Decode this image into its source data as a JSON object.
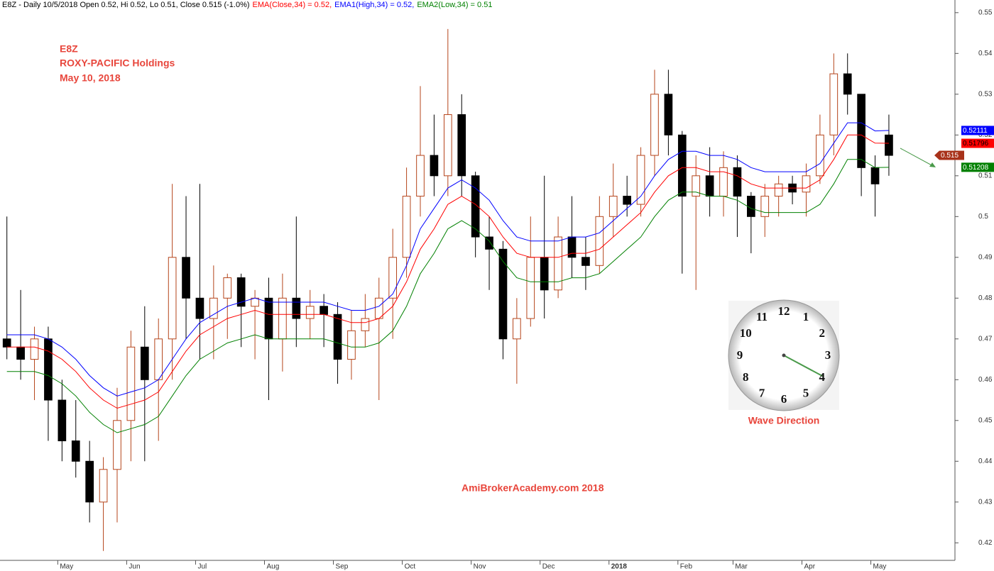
{
  "chart_data": {
    "type": "candlestick",
    "title": "E8Z - Daily 10/5/2018 Open 0.52, Hi 0.52, Lo 0.51, Close 0.515 (-1.0%)",
    "annotations": [
      "E8Z",
      "ROXY-PACIFIC Holdings",
      "May 10, 2018"
    ],
    "watermark": "AmiBrokerAcademy.com  2018",
    "clock_caption": "Wave Direction",
    "clock_numbers": [
      12,
      1,
      2,
      3,
      4,
      5,
      6,
      7,
      8,
      9,
      10,
      11
    ],
    "categories": [
      null,
      null,
      null,
      null,
      "May",
      null,
      null,
      null,
      null,
      "Jun",
      null,
      null,
      null,
      null,
      "Jul",
      null,
      null,
      null,
      null,
      "Aug",
      null,
      null,
      null,
      null,
      "Sep",
      null,
      null,
      null,
      null,
      "Oct",
      null,
      null,
      null,
      null,
      "Nov",
      null,
      null,
      null,
      null,
      "Dec",
      null,
      null,
      null,
      null,
      "2018",
      null,
      null,
      null,
      null,
      "Feb",
      null,
      null,
      null,
      "Mar",
      null,
      null,
      null,
      null,
      "Apr",
      null,
      null,
      null,
      null,
      "May",
      null
    ],
    "open": [
      0.47,
      0.468,
      0.465,
      0.47,
      0.455,
      0.445,
      0.44,
      0.43,
      0.438,
      0.45,
      0.468,
      0.46,
      0.47,
      0.49,
      0.48,
      0.475,
      0.48,
      0.485,
      0.478,
      0.48,
      0.47,
      0.48,
      0.475,
      0.478,
      0.476,
      0.465,
      0.472,
      0.475,
      0.48,
      0.49,
      0.505,
      0.515,
      0.51,
      0.525,
      0.51,
      0.495,
      0.492,
      0.47,
      0.475,
      0.49,
      0.482,
      0.495,
      0.49,
      0.488,
      0.5,
      0.505,
      0.503,
      0.515,
      0.53,
      0.52,
      0.505,
      0.51,
      0.505,
      0.512,
      0.505,
      0.5,
      0.505,
      0.508,
      0.506,
      0.51,
      0.52,
      0.535,
      0.53,
      0.512,
      0.52
    ],
    "high": [
      0.5,
      0.482,
      0.473,
      0.473,
      0.46,
      0.455,
      0.445,
      0.441,
      0.458,
      0.472,
      0.478,
      0.475,
      0.508,
      0.505,
      0.508,
      0.488,
      0.486,
      0.486,
      0.482,
      0.485,
      0.486,
      0.5,
      0.482,
      0.481,
      0.479,
      0.477,
      0.481,
      0.485,
      0.497,
      0.512,
      0.532,
      0.525,
      0.546,
      0.53,
      0.511,
      0.5,
      0.494,
      0.48,
      0.5,
      0.51,
      0.5,
      0.505,
      0.495,
      0.505,
      0.513,
      0.51,
      0.517,
      0.536,
      0.536,
      0.521,
      0.515,
      0.517,
      0.516,
      0.515,
      0.506,
      0.508,
      0.51,
      0.51,
      0.513,
      0.525,
      0.54,
      0.54,
      0.53,
      0.515,
      0.525
    ],
    "low": [
      0.465,
      0.46,
      0.455,
      0.445,
      0.44,
      0.436,
      0.425,
      0.418,
      0.425,
      0.44,
      0.44,
      0.445,
      0.46,
      0.47,
      0.465,
      0.465,
      0.47,
      0.468,
      0.465,
      0.455,
      0.462,
      0.468,
      0.47,
      0.468,
      0.459,
      0.46,
      0.468,
      0.455,
      0.47,
      0.485,
      0.5,
      0.505,
      0.505,
      0.505,
      0.49,
      0.482,
      0.465,
      0.459,
      0.473,
      0.475,
      0.48,
      0.485,
      0.482,
      0.486,
      0.495,
      0.5,
      0.5,
      0.51,
      0.515,
      0.486,
      0.482,
      0.5,
      0.5,
      0.495,
      0.491,
      0.495,
      0.5,
      0.503,
      0.5,
      0.508,
      0.515,
      0.525,
      0.505,
      0.5,
      0.51
    ],
    "close": [
      0.468,
      0.465,
      0.47,
      0.455,
      0.445,
      0.44,
      0.43,
      0.438,
      0.45,
      0.468,
      0.46,
      0.47,
      0.49,
      0.48,
      0.475,
      0.48,
      0.485,
      0.478,
      0.48,
      0.47,
      0.48,
      0.475,
      0.478,
      0.476,
      0.465,
      0.472,
      0.475,
      0.48,
      0.49,
      0.505,
      0.515,
      0.51,
      0.525,
      0.51,
      0.495,
      0.492,
      0.47,
      0.475,
      0.49,
      0.482,
      0.495,
      0.49,
      0.488,
      0.5,
      0.505,
      0.503,
      0.515,
      0.53,
      0.52,
      0.505,
      0.51,
      0.505,
      0.512,
      0.505,
      0.5,
      0.505,
      0.508,
      0.506,
      0.51,
      0.52,
      0.535,
      0.53,
      0.512,
      0.508,
      0.515
    ],
    "up_color": "#b5451b",
    "down_color": "#000000",
    "series": [
      {
        "name": "EMA(Close,34) = 0.52,",
        "color": "#ff0000",
        "label_text_color": "#000000",
        "values": [
          0.468,
          0.468,
          0.468,
          0.467,
          0.465,
          0.462,
          0.458,
          0.455,
          0.453,
          0.454,
          0.455,
          0.457,
          0.462,
          0.467,
          0.471,
          0.473,
          0.475,
          0.476,
          0.477,
          0.476,
          0.476,
          0.476,
          0.476,
          0.476,
          0.475,
          0.474,
          0.474,
          0.475,
          0.478,
          0.484,
          0.492,
          0.497,
          0.503,
          0.505,
          0.503,
          0.5,
          0.495,
          0.491,
          0.49,
          0.49,
          0.49,
          0.491,
          0.491,
          0.492,
          0.495,
          0.498,
          0.501,
          0.506,
          0.51,
          0.512,
          0.512,
          0.511,
          0.511,
          0.51,
          0.508,
          0.507,
          0.507,
          0.507,
          0.507,
          0.509,
          0.514,
          0.52,
          0.52,
          0.518,
          0.51796
        ]
      },
      {
        "name": "EMA1(High,34) = 0.52,",
        "color": "#0000ff",
        "label_text_color": "#ffffff",
        "values": [
          0.471,
          0.471,
          0.471,
          0.47,
          0.468,
          0.465,
          0.461,
          0.458,
          0.456,
          0.457,
          0.458,
          0.46,
          0.465,
          0.47,
          0.474,
          0.476,
          0.478,
          0.479,
          0.48,
          0.479,
          0.479,
          0.479,
          0.479,
          0.479,
          0.478,
          0.477,
          0.477,
          0.478,
          0.481,
          0.488,
          0.497,
          0.502,
          0.507,
          0.509,
          0.507,
          0.504,
          0.499,
          0.495,
          0.494,
          0.494,
          0.494,
          0.495,
          0.495,
          0.496,
          0.499,
          0.502,
          0.505,
          0.51,
          0.514,
          0.516,
          0.516,
          0.515,
          0.515,
          0.514,
          0.512,
          0.511,
          0.511,
          0.511,
          0.511,
          0.513,
          0.518,
          0.523,
          0.523,
          0.521,
          0.52111
        ]
      },
      {
        "name": "EMA2(Low,34) = 0.51",
        "color": "#008000",
        "label_text_color": "#ffffff",
        "values": [
          0.462,
          0.462,
          0.462,
          0.461,
          0.459,
          0.456,
          0.452,
          0.449,
          0.447,
          0.448,
          0.449,
          0.451,
          0.456,
          0.461,
          0.465,
          0.467,
          0.469,
          0.47,
          0.471,
          0.47,
          0.47,
          0.47,
          0.47,
          0.47,
          0.469,
          0.468,
          0.468,
          0.469,
          0.472,
          0.478,
          0.486,
          0.491,
          0.497,
          0.499,
          0.497,
          0.494,
          0.489,
          0.485,
          0.484,
          0.484,
          0.484,
          0.485,
          0.485,
          0.486,
          0.489,
          0.492,
          0.495,
          0.5,
          0.504,
          0.506,
          0.506,
          0.505,
          0.505,
          0.504,
          0.502,
          0.501,
          0.501,
          0.501,
          0.501,
          0.503,
          0.508,
          0.514,
          0.514,
          0.512,
          0.51208
        ]
      }
    ],
    "ylim": [
      0.4157,
      0.5531
    ],
    "yticks": [
      0.42,
      0.43,
      0.44,
      0.45,
      0.46,
      0.47,
      0.48,
      0.49,
      0.5,
      0.51,
      0.52,
      0.53,
      0.54,
      0.55
    ]
  }
}
